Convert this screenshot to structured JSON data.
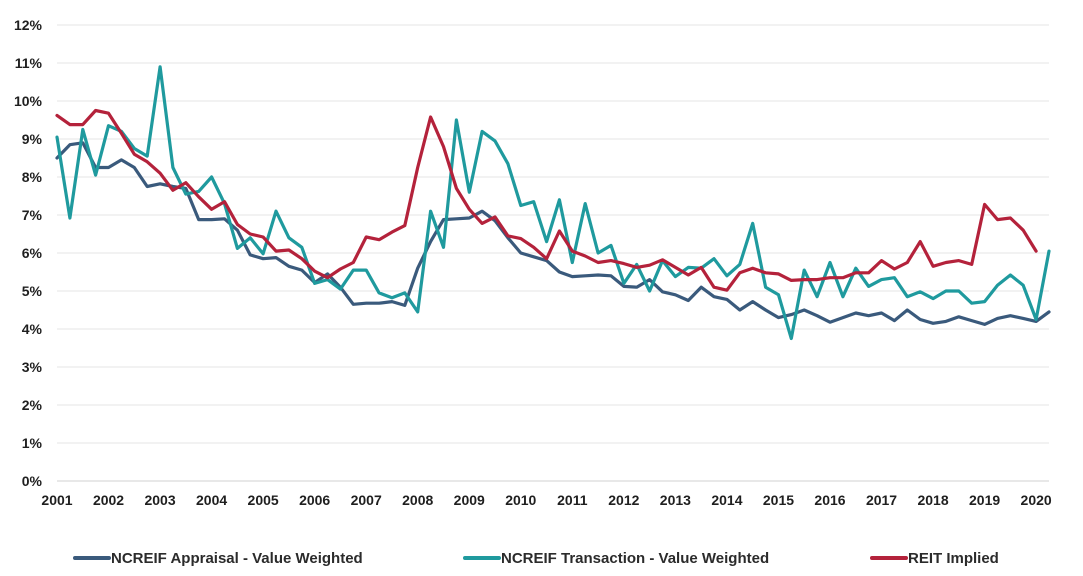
{
  "chart_data": {
    "type": "line",
    "title": "",
    "xlabel": "",
    "ylabel": "",
    "x_ticks": [
      "2001",
      "2002",
      "2003",
      "2004",
      "2005",
      "2006",
      "2007",
      "2008",
      "2009",
      "2010",
      "2011",
      "2012",
      "2013",
      "2014",
      "2015",
      "2016",
      "2017",
      "2018",
      "2019",
      "2020"
    ],
    "xlim": [
      2001,
      2020.25
    ],
    "ylim": [
      0,
      12
    ],
    "y_ticks": [
      {
        "value": 0,
        "label": "0%"
      },
      {
        "value": 1,
        "label": "1%"
      },
      {
        "value": 2,
        "label": "2%"
      },
      {
        "value": 3,
        "label": "3%"
      },
      {
        "value": 4,
        "label": "4%"
      },
      {
        "value": 5,
        "label": "5%"
      },
      {
        "value": 6,
        "label": "6%"
      },
      {
        "value": 7,
        "label": "7%"
      },
      {
        "value": 8,
        "label": "8%"
      },
      {
        "value": 9,
        "label": "9%"
      },
      {
        "value": 10,
        "label": "10%"
      },
      {
        "value": 11,
        "label": "11%"
      },
      {
        "value": 12,
        "label": "12%"
      }
    ],
    "grid": true,
    "legend_position": "bottom",
    "x_start": 2001,
    "x_step": 0.25,
    "series": [
      {
        "name": "NCREIF Appraisal - Value Weighted",
        "color": "#3a5a7c",
        "values": [
          8.5,
          8.85,
          8.9,
          8.25,
          8.25,
          8.45,
          8.25,
          7.75,
          7.82,
          7.75,
          7.7,
          6.88,
          6.88,
          6.9,
          6.6,
          5.95,
          5.85,
          5.88,
          5.65,
          5.55,
          5.22,
          5.45,
          5.1,
          4.65,
          4.68,
          4.68,
          4.72,
          4.62,
          5.6,
          6.3,
          6.88,
          6.9,
          6.92,
          7.1,
          6.85,
          6.4,
          6.0,
          5.9,
          5.8,
          5.5,
          5.38,
          5.4,
          5.42,
          5.4,
          5.12,
          5.1,
          5.3,
          4.98,
          4.9,
          4.75,
          5.1,
          4.85,
          4.78,
          4.5,
          4.72,
          4.5,
          4.3,
          4.38,
          4.5,
          4.35,
          4.18,
          4.3,
          4.42,
          4.35,
          4.42,
          4.22,
          4.5,
          4.25,
          4.15,
          4.2,
          4.32,
          4.22,
          4.12,
          4.28,
          4.35,
          4.28,
          4.2,
          4.45
        ]
      },
      {
        "name": "NCREIF Transaction - Value Weighted",
        "color": "#1f9a9e",
        "values": [
          9.05,
          6.92,
          9.25,
          8.05,
          9.35,
          9.2,
          8.75,
          8.55,
          10.9,
          8.25,
          7.55,
          7.62,
          8.0,
          7.3,
          6.12,
          6.4,
          5.98,
          7.1,
          6.4,
          6.15,
          5.2,
          5.3,
          5.05,
          5.55,
          5.55,
          4.95,
          4.82,
          4.95,
          4.45,
          7.1,
          6.15,
          9.5,
          7.6,
          9.2,
          8.95,
          8.35,
          7.25,
          7.35,
          6.3,
          7.4,
          5.75,
          7.3,
          6.0,
          6.2,
          5.2,
          5.7,
          5.0,
          5.8,
          5.38,
          5.62,
          5.6,
          5.85,
          5.4,
          5.7,
          6.78,
          5.1,
          4.9,
          3.75,
          5.55,
          4.85,
          5.75,
          4.85,
          5.6,
          5.12,
          5.3,
          5.35,
          4.85,
          4.98,
          4.8,
          5.0,
          5.0,
          4.68,
          4.72,
          5.15,
          5.42,
          5.15,
          4.25,
          6.05
        ]
      },
      {
        "name": "REIT Implied",
        "color": "#b4223b",
        "values": [
          9.62,
          9.38,
          9.38,
          9.75,
          9.68,
          9.15,
          8.6,
          8.4,
          8.1,
          7.65,
          7.85,
          7.48,
          7.15,
          7.35,
          6.75,
          6.5,
          6.42,
          6.05,
          6.08,
          5.85,
          5.52,
          5.35,
          5.58,
          5.75,
          6.42,
          6.35,
          6.55,
          6.72,
          8.25,
          9.58,
          8.8,
          7.7,
          7.15,
          6.78,
          6.95,
          6.45,
          6.38,
          6.15,
          5.85,
          6.58,
          6.05,
          5.92,
          5.75,
          5.8,
          5.72,
          5.62,
          5.68,
          5.82,
          5.62,
          5.42,
          5.62,
          5.1,
          5.02,
          5.48,
          5.6,
          5.48,
          5.45,
          5.28,
          5.3,
          5.3,
          5.35,
          5.35,
          5.48,
          5.48,
          5.8,
          5.58,
          5.75,
          6.3,
          5.65,
          5.75,
          5.8,
          5.7,
          7.28,
          6.88,
          6.92,
          6.6,
          6.05
        ]
      }
    ]
  }
}
